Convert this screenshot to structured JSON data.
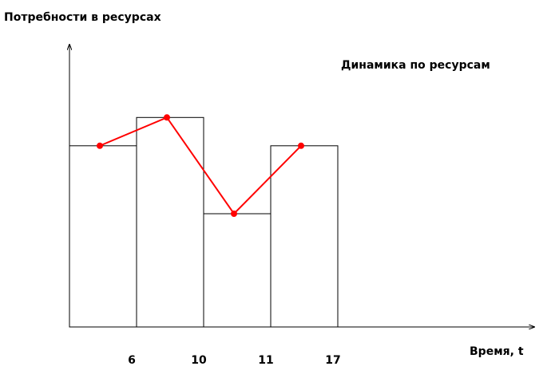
{
  "chart_data": {
    "type": "bar",
    "title": "Динамика по ресурсам",
    "y_label": "Потребности в ресурсах",
    "x_label": "Время, t",
    "categories": [
      "6",
      "10",
      "11",
      "17"
    ],
    "values": [
      64,
      74,
      40,
      64
    ],
    "bar_fill": "#ffffff",
    "bar_stroke": "#000000",
    "line_color": "#ff0000",
    "ylim": [
      0,
      100
    ]
  }
}
